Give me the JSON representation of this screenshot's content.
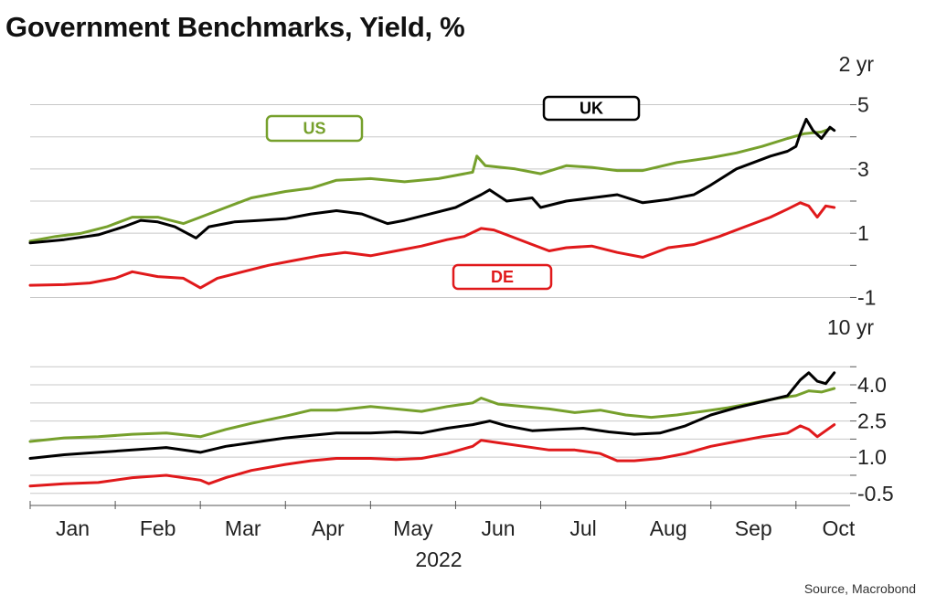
{
  "title": "Government Benchmarks, Yield, %",
  "source": "Source, Macrobond",
  "colors": {
    "US": "#76a02c",
    "UK": "#000000",
    "DE": "#e0191b",
    "grid": "#c8c8c8"
  },
  "chart_data": {
    "type": "line",
    "x": [
      "Jan",
      "Feb",
      "Mar",
      "Apr",
      "May",
      "Jun",
      "Jul",
      "Aug",
      "Sep",
      "Oct"
    ],
    "xlabel": "2022",
    "series_labels": [
      "US",
      "UK",
      "DE"
    ],
    "panels": [
      {
        "label": "2 yr",
        "ticks": [
          5,
          3,
          1,
          -1
        ],
        "gridlines": [
          5,
          4,
          3,
          2,
          1,
          0,
          -1
        ],
        "ylim": [
          -1.3,
          5.3
        ],
        "series": [
          {
            "name": "US",
            "points": [
              [
                0,
                0.75
              ],
              [
                0.3,
                0.9
              ],
              [
                0.6,
                1.0
              ],
              [
                0.9,
                1.2
              ],
              [
                1.2,
                1.5
              ],
              [
                1.5,
                1.5
              ],
              [
                1.8,
                1.3
              ],
              [
                2.0,
                1.5
              ],
              [
                2.3,
                1.8
              ],
              [
                2.6,
                2.1
              ],
              [
                3.0,
                2.3
              ],
              [
                3.3,
                2.4
              ],
              [
                3.6,
                2.65
              ],
              [
                4.0,
                2.7
              ],
              [
                4.4,
                2.6
              ],
              [
                4.8,
                2.7
              ],
              [
                5.2,
                2.9
              ],
              [
                5.25,
                3.4
              ],
              [
                5.35,
                3.1
              ],
              [
                5.7,
                3.0
              ],
              [
                6.0,
                2.85
              ],
              [
                6.3,
                3.1
              ],
              [
                6.6,
                3.05
              ],
              [
                6.9,
                2.95
              ],
              [
                7.2,
                2.95
              ],
              [
                7.6,
                3.2
              ],
              [
                8.0,
                3.35
              ],
              [
                8.3,
                3.5
              ],
              [
                8.6,
                3.7
              ],
              [
                8.9,
                3.95
              ],
              [
                9.1,
                4.1
              ],
              [
                9.3,
                4.15
              ],
              [
                9.4,
                4.25
              ]
            ]
          },
          {
            "name": "UK",
            "points": [
              [
                0,
                0.7
              ],
              [
                0.4,
                0.8
              ],
              [
                0.8,
                0.95
              ],
              [
                1.1,
                1.2
              ],
              [
                1.3,
                1.4
              ],
              [
                1.5,
                1.35
              ],
              [
                1.7,
                1.2
              ],
              [
                1.95,
                0.85
              ],
              [
                2.1,
                1.2
              ],
              [
                2.4,
                1.35
              ],
              [
                2.7,
                1.4
              ],
              [
                3.0,
                1.45
              ],
              [
                3.3,
                1.6
              ],
              [
                3.6,
                1.7
              ],
              [
                3.9,
                1.6
              ],
              [
                4.2,
                1.3
              ],
              [
                4.4,
                1.4
              ],
              [
                4.7,
                1.6
              ],
              [
                5.0,
                1.8
              ],
              [
                5.3,
                2.2
              ],
              [
                5.4,
                2.35
              ],
              [
                5.6,
                2.0
              ],
              [
                5.9,
                2.1
              ],
              [
                6.0,
                1.8
              ],
              [
                6.3,
                2.0
              ],
              [
                6.6,
                2.1
              ],
              [
                6.9,
                2.2
              ],
              [
                7.2,
                1.95
              ],
              [
                7.5,
                2.05
              ],
              [
                7.8,
                2.2
              ],
              [
                8.0,
                2.5
              ],
              [
                8.3,
                3.0
              ],
              [
                8.5,
                3.2
              ],
              [
                8.7,
                3.4
              ],
              [
                8.9,
                3.55
              ],
              [
                9.0,
                3.7
              ],
              [
                9.05,
                4.1
              ],
              [
                9.12,
                4.55
              ],
              [
                9.2,
                4.2
              ],
              [
                9.3,
                3.95
              ],
              [
                9.4,
                4.3
              ],
              [
                9.45,
                4.2
              ]
            ]
          },
          {
            "name": "DE",
            "points": [
              [
                0,
                -0.62
              ],
              [
                0.4,
                -0.6
              ],
              [
                0.7,
                -0.55
              ],
              [
                1.0,
                -0.4
              ],
              [
                1.2,
                -0.2
              ],
              [
                1.5,
                -0.35
              ],
              [
                1.8,
                -0.4
              ],
              [
                2.0,
                -0.7
              ],
              [
                2.2,
                -0.4
              ],
              [
                2.5,
                -0.2
              ],
              [
                2.8,
                0
              ],
              [
                3.1,
                0.15
              ],
              [
                3.4,
                0.3
              ],
              [
                3.7,
                0.4
              ],
              [
                4.0,
                0.3
              ],
              [
                4.3,
                0.45
              ],
              [
                4.6,
                0.6
              ],
              [
                4.9,
                0.8
              ],
              [
                5.1,
                0.9
              ],
              [
                5.3,
                1.15
              ],
              [
                5.45,
                1.1
              ],
              [
                5.6,
                0.95
              ],
              [
                5.9,
                0.65
              ],
              [
                6.1,
                0.45
              ],
              [
                6.3,
                0.55
              ],
              [
                6.6,
                0.6
              ],
              [
                6.9,
                0.4
              ],
              [
                7.2,
                0.25
              ],
              [
                7.5,
                0.55
              ],
              [
                7.8,
                0.65
              ],
              [
                8.1,
                0.9
              ],
              [
                8.4,
                1.2
              ],
              [
                8.7,
                1.5
              ],
              [
                8.9,
                1.75
              ],
              [
                9.05,
                1.95
              ],
              [
                9.15,
                1.85
              ],
              [
                9.25,
                1.5
              ],
              [
                9.35,
                1.85
              ],
              [
                9.45,
                1.8
              ]
            ]
          }
        ]
      },
      {
        "label": "10 yr",
        "ticks": [
          4.0,
          2.5,
          1.0,
          -0.5
        ],
        "gridlines": [
          4.75,
          4.0,
          3.25,
          2.5,
          1.75,
          1.0,
          0.25,
          -0.5
        ],
        "ylim": [
          -0.85,
          5.1
        ],
        "series": [
          {
            "name": "US",
            "points": [
              [
                0,
                1.65
              ],
              [
                0.4,
                1.8
              ],
              [
                0.8,
                1.85
              ],
              [
                1.2,
                1.95
              ],
              [
                1.6,
                2.0
              ],
              [
                2.0,
                1.85
              ],
              [
                2.3,
                2.15
              ],
              [
                2.6,
                2.4
              ],
              [
                3.0,
                2.7
              ],
              [
                3.3,
                2.95
              ],
              [
                3.6,
                2.95
              ],
              [
                4.0,
                3.1
              ],
              [
                4.3,
                3.0
              ],
              [
                4.6,
                2.9
              ],
              [
                4.9,
                3.1
              ],
              [
                5.2,
                3.25
              ],
              [
                5.3,
                3.45
              ],
              [
                5.5,
                3.2
              ],
              [
                5.8,
                3.1
              ],
              [
                6.1,
                3.0
              ],
              [
                6.4,
                2.85
              ],
              [
                6.7,
                2.95
              ],
              [
                7.0,
                2.75
              ],
              [
                7.3,
                2.65
              ],
              [
                7.6,
                2.75
              ],
              [
                7.9,
                2.9
              ],
              [
                8.2,
                3.05
              ],
              [
                8.5,
                3.25
              ],
              [
                8.8,
                3.45
              ],
              [
                9.0,
                3.55
              ],
              [
                9.15,
                3.75
              ],
              [
                9.3,
                3.7
              ],
              [
                9.45,
                3.85
              ]
            ]
          },
          {
            "name": "UK",
            "points": [
              [
                0,
                0.95
              ],
              [
                0.4,
                1.1
              ],
              [
                0.8,
                1.2
              ],
              [
                1.2,
                1.3
              ],
              [
                1.6,
                1.4
              ],
              [
                2.0,
                1.2
              ],
              [
                2.3,
                1.45
              ],
              [
                2.6,
                1.6
              ],
              [
                3.0,
                1.8
              ],
              [
                3.3,
                1.9
              ],
              [
                3.6,
                2.0
              ],
              [
                4.0,
                2.0
              ],
              [
                4.3,
                2.05
              ],
              [
                4.6,
                2.0
              ],
              [
                4.9,
                2.2
              ],
              [
                5.2,
                2.35
              ],
              [
                5.4,
                2.5
              ],
              [
                5.6,
                2.3
              ],
              [
                5.9,
                2.1
              ],
              [
                6.2,
                2.15
              ],
              [
                6.5,
                2.2
              ],
              [
                6.8,
                2.05
              ],
              [
                7.1,
                1.95
              ],
              [
                7.4,
                2.0
              ],
              [
                7.7,
                2.3
              ],
              [
                8.0,
                2.75
              ],
              [
                8.3,
                3.05
              ],
              [
                8.6,
                3.3
              ],
              [
                8.9,
                3.55
              ],
              [
                9.05,
                4.2
              ],
              [
                9.15,
                4.5
              ],
              [
                9.25,
                4.15
              ],
              [
                9.35,
                4.05
              ],
              [
                9.45,
                4.5
              ]
            ]
          },
          {
            "name": "DE",
            "points": [
              [
                0,
                -0.2
              ],
              [
                0.4,
                -0.1
              ],
              [
                0.8,
                -0.05
              ],
              [
                1.2,
                0.15
              ],
              [
                1.6,
                0.25
              ],
              [
                2.0,
                0.05
              ],
              [
                2.1,
                -0.1
              ],
              [
                2.3,
                0.15
              ],
              [
                2.6,
                0.45
              ],
              [
                3.0,
                0.7
              ],
              [
                3.3,
                0.85
              ],
              [
                3.6,
                0.95
              ],
              [
                4.0,
                0.95
              ],
              [
                4.3,
                0.9
              ],
              [
                4.6,
                0.95
              ],
              [
                4.9,
                1.15
              ],
              [
                5.2,
                1.45
              ],
              [
                5.3,
                1.7
              ],
              [
                5.5,
                1.6
              ],
              [
                5.8,
                1.45
              ],
              [
                6.1,
                1.3
              ],
              [
                6.4,
                1.3
              ],
              [
                6.7,
                1.15
              ],
              [
                6.9,
                0.85
              ],
              [
                7.1,
                0.85
              ],
              [
                7.4,
                0.95
              ],
              [
                7.7,
                1.15
              ],
              [
                8.0,
                1.45
              ],
              [
                8.3,
                1.65
              ],
              [
                8.6,
                1.85
              ],
              [
                8.9,
                2.0
              ],
              [
                9.05,
                2.3
              ],
              [
                9.15,
                2.15
              ],
              [
                9.25,
                1.85
              ],
              [
                9.35,
                2.1
              ],
              [
                9.45,
                2.35
              ]
            ]
          }
        ]
      }
    ]
  }
}
